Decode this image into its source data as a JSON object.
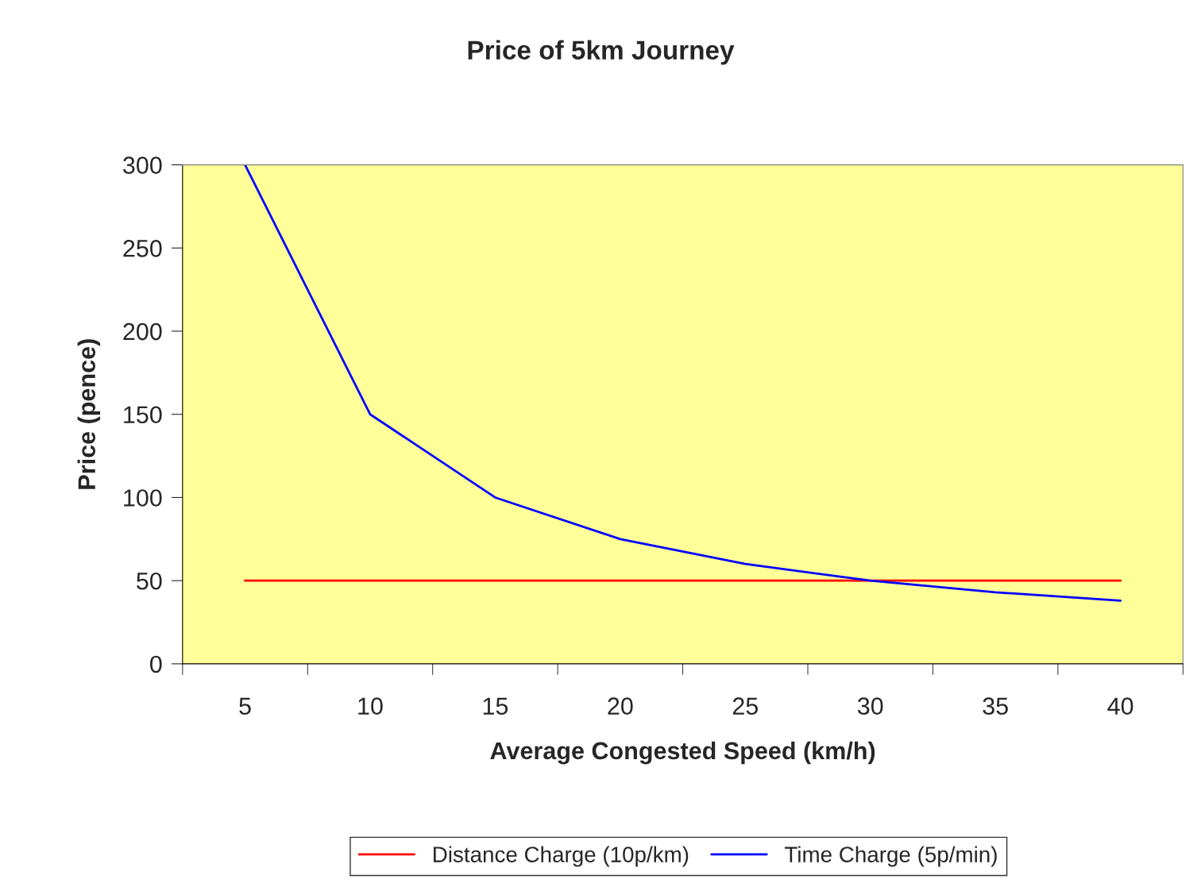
{
  "chart_data": {
    "type": "line",
    "title": "Price of 5km Journey",
    "xlabel": "Average Congested Speed (km/h)",
    "ylabel": "Price (pence)",
    "categories": [
      "5",
      "10",
      "15",
      "20",
      "25",
      "30",
      "35",
      "40"
    ],
    "series": [
      {
        "name": "Distance Charge (10p/km)",
        "color": "#ff0000",
        "values": [
          50,
          50,
          50,
          50,
          50,
          50,
          50,
          50
        ]
      },
      {
        "name": "Time Charge (5p/min)",
        "color": "#0000ff",
        "values": [
          300,
          150,
          100,
          75,
          60,
          50,
          43,
          38
        ]
      }
    ],
    "ylim": [
      0,
      300
    ],
    "yticks": [
      0,
      50,
      100,
      150,
      200,
      250,
      300
    ],
    "grid": false,
    "legend": "bottom",
    "marker": "none",
    "line_style": "solid"
  }
}
